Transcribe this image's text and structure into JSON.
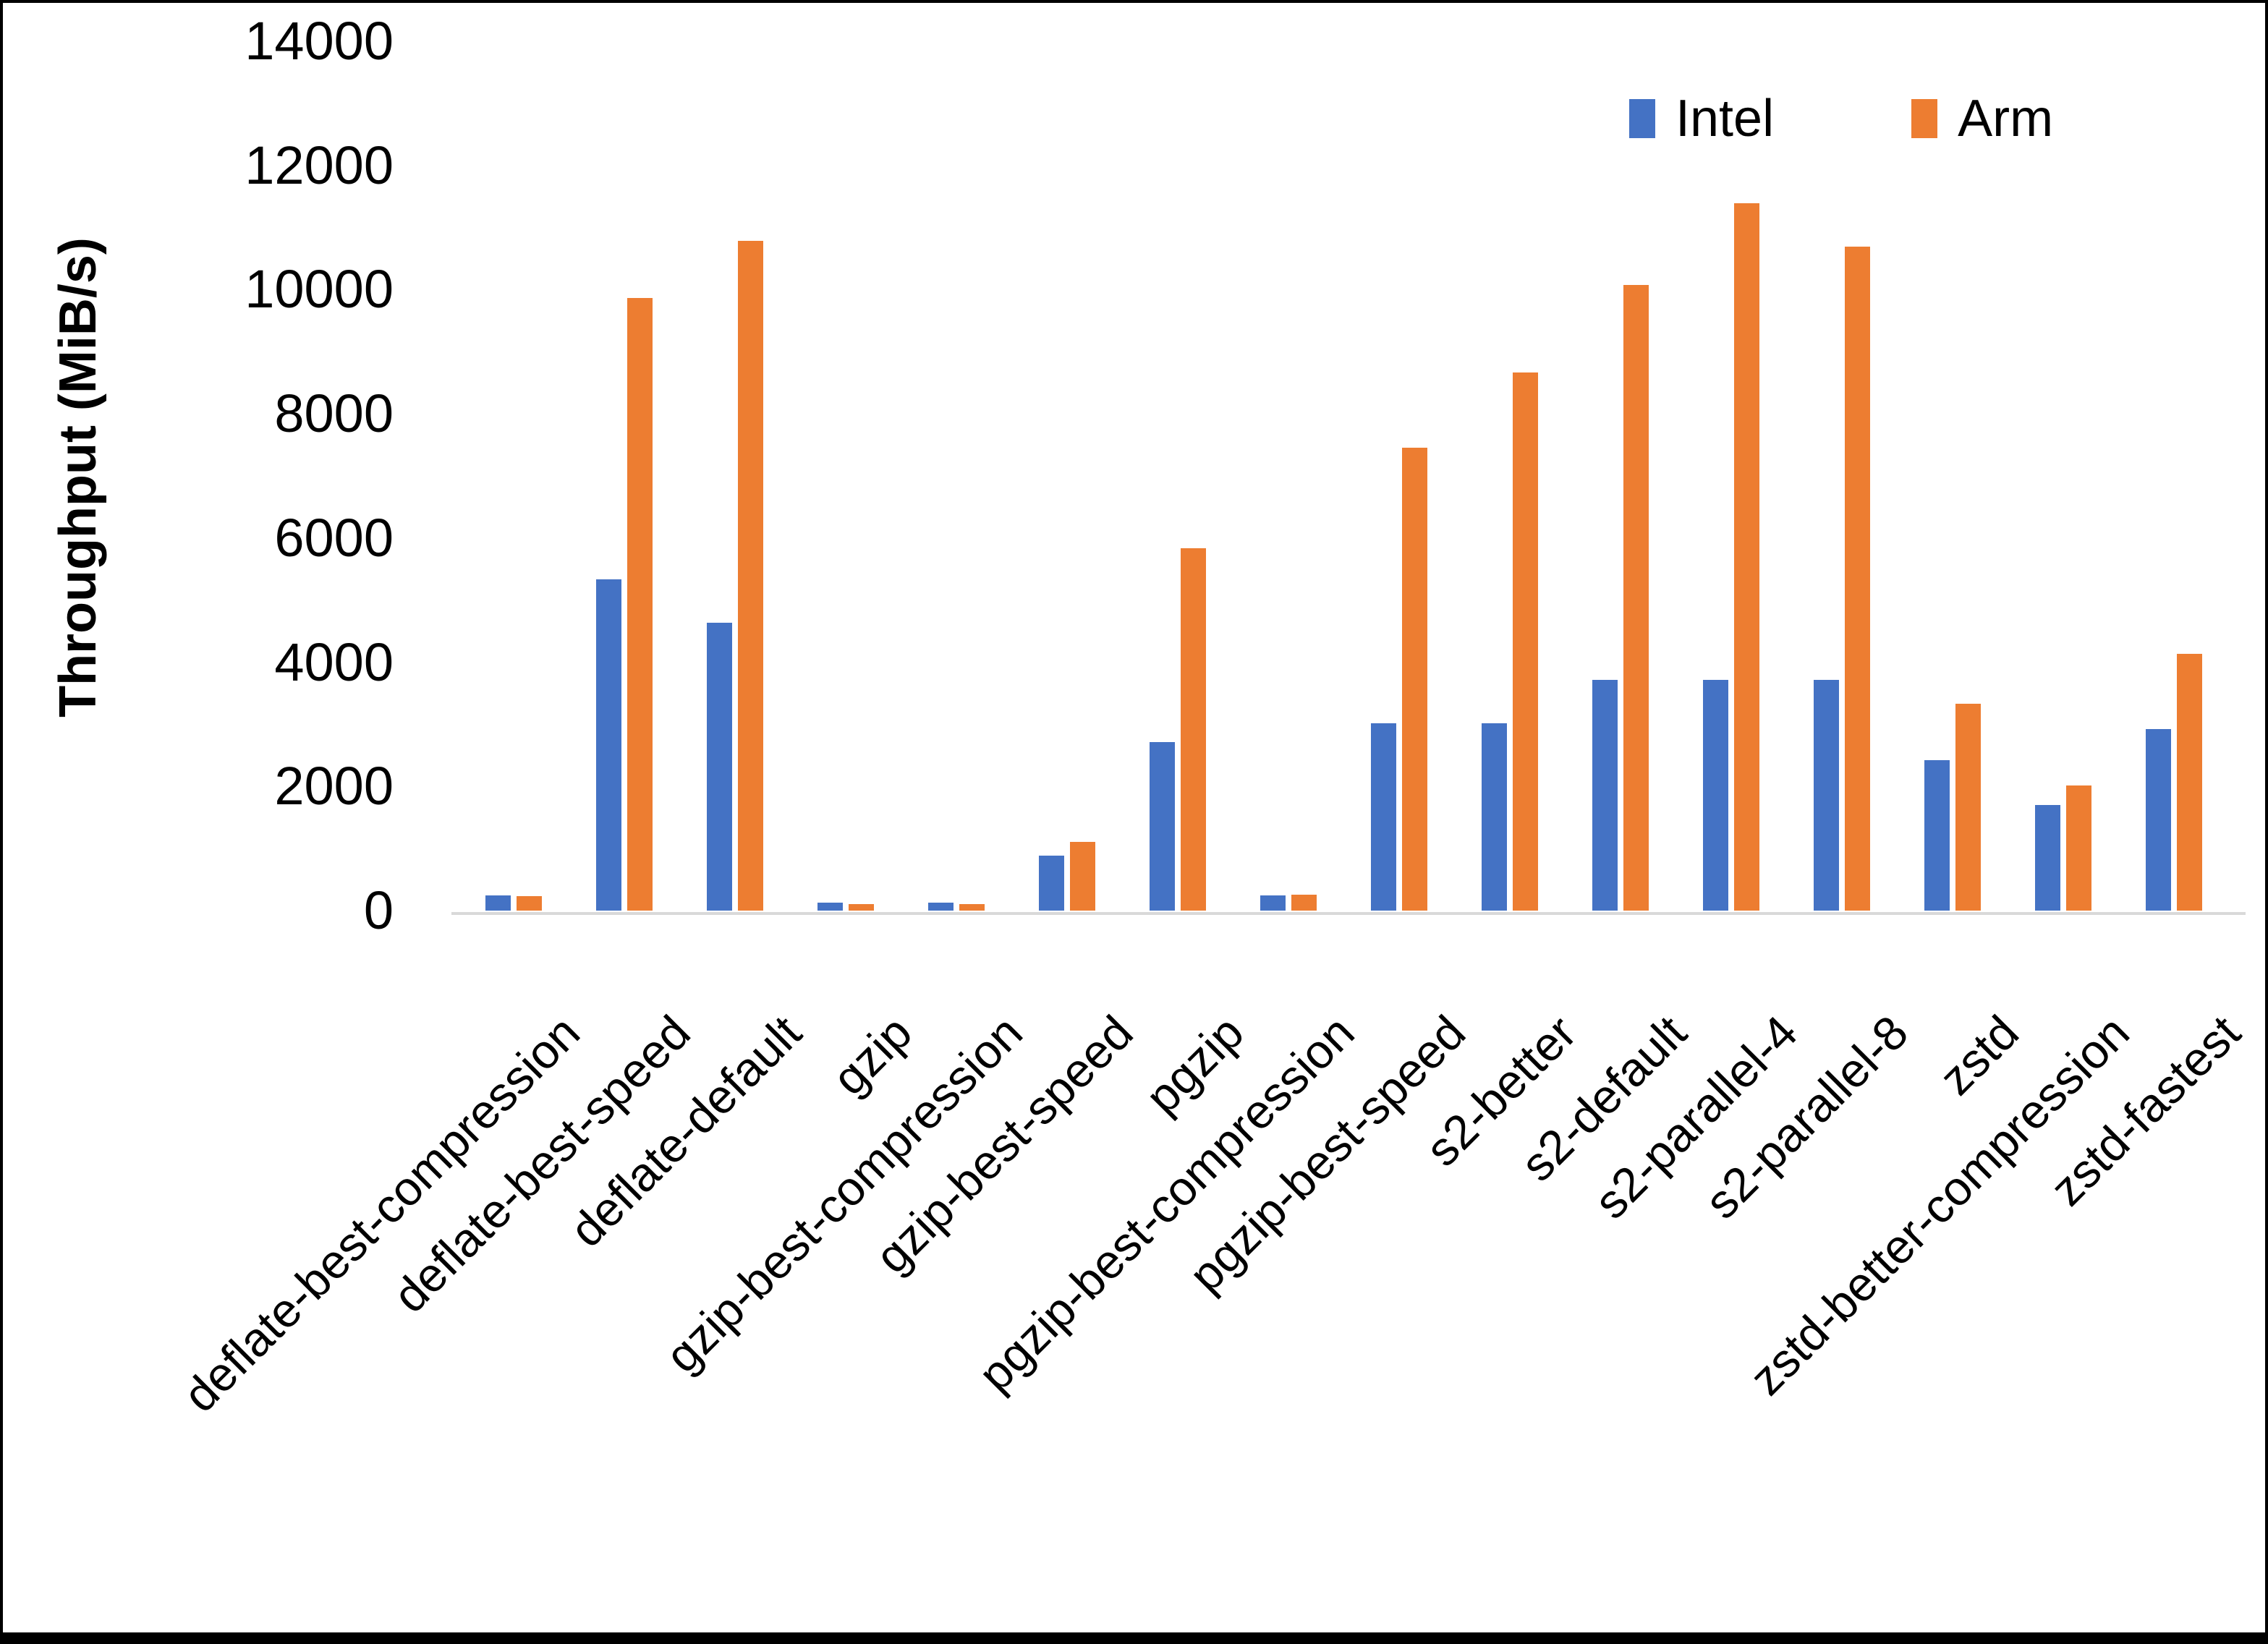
{
  "chart_data": {
    "type": "bar",
    "title": "",
    "xlabel": "",
    "ylabel": "Throughput (MiB/s)",
    "ylim": [
      0,
      14000
    ],
    "y_tick_step": 2000,
    "grid": false,
    "legend_position": "top-right",
    "categories": [
      "deflate-best-compression",
      "deflate-best-speed",
      "deflate-default",
      "gzip",
      "gzip-best-compression",
      "gzip-best-speed",
      "pgzip",
      "pgzip-best-compression",
      "pgzip-best-speed",
      "s2-better",
      "s2-default",
      "s2-parallel-4",
      "s2-parallel-8",
      "zstd",
      "zstd-better-compression",
      "zstd-fastest"
    ],
    "series": [
      {
        "name": "Intel",
        "color": "#4472C4",
        "values": [
          240,
          5330,
          4630,
          130,
          130,
          890,
          2710,
          240,
          3020,
          3020,
          3720,
          3720,
          3720,
          2420,
          1700,
          2920
        ]
      },
      {
        "name": "Arm",
        "color": "#ED7D31",
        "values": [
          230,
          9870,
          10780,
          110,
          110,
          1110,
          5840,
          260,
          7460,
          8660,
          10070,
          11390,
          10690,
          3330,
          2010,
          4130
        ]
      }
    ]
  }
}
